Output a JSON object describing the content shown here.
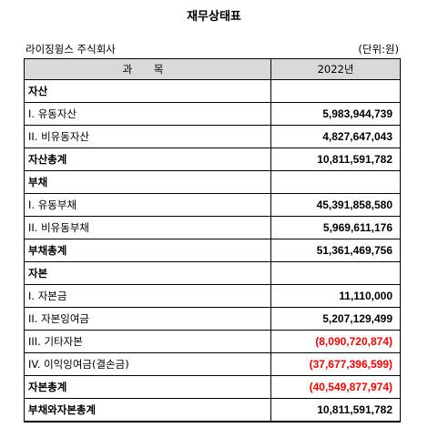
{
  "title": "재무상태표",
  "company": "라이징윙스 주식회사",
  "unit": "(단위:원)",
  "header": {
    "item": "과  목",
    "year": "2022년"
  },
  "rows": [
    {
      "label": "자산",
      "value": "",
      "bold": true,
      "negative": false
    },
    {
      "label": "I. 유동자산",
      "value": "5,983,944,739",
      "bold": false,
      "negative": false
    },
    {
      "label": "II. 비유동자산",
      "value": "4,827,647,043",
      "bold": false,
      "negative": false
    },
    {
      "label": "자산총계",
      "value": "10,811,591,782",
      "bold": true,
      "negative": false
    },
    {
      "label": "부채",
      "value": "",
      "bold": true,
      "negative": false
    },
    {
      "label": "I. 유동부채",
      "value": "45,391,858,580",
      "bold": false,
      "negative": false
    },
    {
      "label": "II. 비유동부채",
      "value": "5,969,611,176",
      "bold": false,
      "negative": false
    },
    {
      "label": "부채총계",
      "value": "51,361,469,756",
      "bold": true,
      "negative": false
    },
    {
      "label": "자본",
      "value": "",
      "bold": true,
      "negative": false
    },
    {
      "label": "I. 자본금",
      "value": "11,110,000",
      "bold": false,
      "negative": false
    },
    {
      "label": "II. 자본잉여금",
      "value": "5,207,129,499",
      "bold": false,
      "negative": false
    },
    {
      "label": "III. 기타자본",
      "value": "(8,090,720,874)",
      "bold": false,
      "negative": true
    },
    {
      "label": "IV. 이익잉여금(결손금)",
      "value": "(37,677,396,599)",
      "bold": false,
      "negative": true
    },
    {
      "label": "자본총계",
      "value": "(40,549,877,974)",
      "bold": true,
      "negative": true
    },
    {
      "label": "부채와자본총계",
      "value": "10,811,591,782",
      "bold": true,
      "negative": false
    }
  ],
  "colors": {
    "header_bg": "#d9d9d9",
    "negative": "#ff0000",
    "border": "#000000"
  }
}
